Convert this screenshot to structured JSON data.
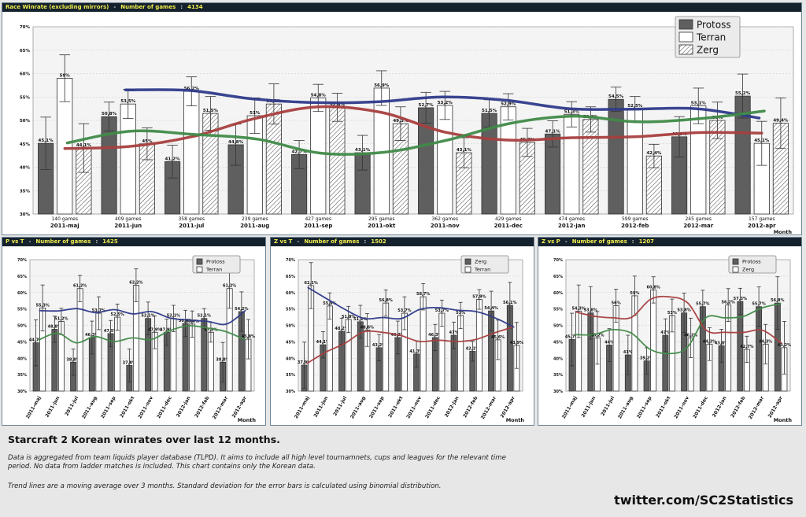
{
  "footer": {
    "title": "Starcraft 2 Korean winrates over last 12 months.",
    "description": "Data is aggregated from team liquids player database (TLPD). It aims to include all high level tournamnets, cups and leagues for the relevant time period. No data from ladder matches is included. This chart contains only the Korean data.",
    "trend_note": "Trend lines are a moving average over 3 months. Standard deviation for the error bars is calculated using binomial distribution.",
    "twitter": "twitter.com/SC2Statistics"
  },
  "colors": {
    "protoss": "#5f5f5f",
    "terran": "#ffffff",
    "zerg": "#ffffff",
    "blue": "#2e3a8a",
    "red": "#a83e3e",
    "green": "#3f8a48",
    "header_bg": "#15222d",
    "header_text": "#f0ec4e"
  },
  "chart_data": [
    {
      "id": "main",
      "type": "bar",
      "title": "Race Winrate (excluding mirrors)",
      "count_label": "Number of games",
      "count": "4134",
      "xlabel": "Month",
      "ylim": [
        30,
        70
      ],
      "yticks": [
        "30%",
        "35%",
        "40%",
        "45%",
        "50%",
        "55%",
        "60%",
        "65%",
        "70%"
      ],
      "categories": [
        "2011-maj",
        "2011-jun",
        "2011-jul",
        "2011-aug",
        "2011-sep",
        "2011-okt",
        "2011-nov",
        "2011-dec",
        "2012-jan",
        "2012-feb",
        "2012-mar",
        "2012-apr"
      ],
      "games": [
        "140 games",
        "409 games",
        "358 games",
        "239 games",
        "427 games",
        "295 games",
        "362 games",
        "429 games",
        "474 games",
        "599 games",
        "245 games",
        "157 games"
      ],
      "series": [
        {
          "name": "Protoss",
          "style": "protoss",
          "trend": "blue",
          "values": [
            45.1,
            50.8,
            41.2,
            44.8,
            42.7,
            43.1,
            52.7,
            51.5,
            47.1,
            54.5,
            46.5,
            55.2
          ],
          "labels": [
            "45,1%",
            "50,8%",
            "41,2%",
            "44,8%",
            "42,7%",
            "43,1%",
            "52,7%",
            "51,5%",
            "47,1%",
            "54,5%",
            "46,5%",
            "55,2%"
          ],
          "errors": [
            5.6,
            3.1,
            3.5,
            4.4,
            3.0,
            3.7,
            3.3,
            2.9,
            2.8,
            2.6,
            4.3,
            4.7
          ],
          "trend_values": [
            null,
            56.5,
            56.4,
            54.6,
            53.8,
            54.0,
            55.0,
            54.3,
            52.5,
            52.4,
            52.5,
            50.5
          ]
        },
        {
          "name": "Terran",
          "style": "terran",
          "trend": "red",
          "values": [
            59,
            53.5,
            56.2,
            51,
            54.8,
            56.9,
            53.2,
            52.9,
            51.3,
            52.5,
            53.1,
            45.1
          ],
          "labels": [
            "59%",
            "53,5%",
            "56,2%",
            "51%",
            "54,8%",
            "56,9%",
            "53,2%",
            "52,9%",
            "51,3%",
            "52,5%",
            "53,1%",
            "45,1%"
          ],
          "errors": [
            5.0,
            3.1,
            3.1,
            3.8,
            2.9,
            3.7,
            3.0,
            2.8,
            2.7,
            2.6,
            3.8,
            4.7
          ],
          "trend_values": [
            44.0,
            44.4,
            46.5,
            50.4,
            52.9,
            51.7,
            47.5,
            45.8,
            46.3,
            46.5,
            47.4,
            47.3
          ]
        },
        {
          "name": "Zerg",
          "style": "zerg",
          "trend": "green",
          "values": [
            44.1,
            45,
            51.5,
            53.5,
            52.8,
            49.3,
            43.1,
            45.3,
            50.2,
            42.4,
            50,
            49.4
          ],
          "labels": [
            "44,1%",
            "45%",
            "51,5%",
            "53,5%",
            "52,8%",
            "49,3%",
            "43,1%",
            "45,3%",
            "50,2%",
            "42,4%",
            "50%",
            "49,4%"
          ],
          "errors": [
            5.2,
            3.4,
            3.6,
            4.3,
            3.0,
            3.6,
            3.2,
            3.0,
            2.7,
            2.5,
            3.9,
            5.4
          ],
          "trend_values": [
            45.2,
            47.7,
            47.0,
            46.0,
            43.0,
            43.2,
            45.8,
            49.4,
            50.9,
            49.7,
            50.4,
            52.0
          ]
        }
      ]
    },
    {
      "id": "pvt",
      "type": "bar",
      "title": "P vs T",
      "count_label": "Number of games",
      "count": "1425",
      "xlabel": "Month",
      "ylim": [
        30,
        70
      ],
      "yticks": [
        "30%",
        "35%",
        "40%",
        "45%",
        "50%",
        "55%",
        "60%",
        "65%",
        "70%"
      ],
      "categories": [
        "2011-maj",
        "2011-jun",
        "2011-jul",
        "2011-aug",
        "2011-sep",
        "2011-okt",
        "2011-nov",
        "2011-dec",
        "2012-jan",
        "2012-feb",
        "2012-mar",
        "2012-apr"
      ],
      "series": [
        {
          "name": "Protoss",
          "style": "protoss",
          "trend": "green",
          "values": [
            44.7,
            48.8,
            38.8,
            46.3,
            47.5,
            37.8,
            52.1,
            47.9,
            50.6,
            52.1,
            38.8,
            54.2
          ],
          "labels": [
            "44,7%",
            "48,8%",
            "38,8%",
            "46,3%",
            "47,5%",
            "37,8%",
            "52,1%",
            "47,9%",
            "50,6%",
            "52,1%",
            "38,8%",
            "54,2%"
          ],
          "errors": [
            7,
            4,
            4,
            5,
            4,
            5,
            5,
            4,
            4,
            3,
            6,
            6
          ],
          "trend_values": [
            45.6,
            47.6,
            44.7,
            46.6,
            45.1,
            46.2,
            45.7,
            48.4,
            49.9,
            49.2,
            48.1,
            45.7
          ]
        },
        {
          "name": "Terran",
          "style": "terran",
          "trend": "blue",
          "values": [
            55.3,
            51.2,
            61.2,
            53.7,
            52.5,
            62.2,
            47.9,
            52.1,
            50.4,
            47.9,
            61.2,
            45.8
          ],
          "labels": [
            "55,3%",
            "51,2%",
            "61,2%",
            "53,7%",
            "52,5%",
            "62,2%",
            "47,9%",
            "52,1%",
            "50,4%",
            "47,9%",
            "61,2%",
            "45,8%"
          ],
          "errors": [
            7,
            4,
            4,
            5,
            4,
            5,
            5,
            4,
            4,
            3,
            6,
            6
          ],
          "trend_values": [
            54.5,
            54.4,
            55.1,
            53.9,
            54.8,
            53.5,
            54.2,
            52.2,
            51.6,
            51.2,
            50.4,
            54.5
          ]
        }
      ]
    },
    {
      "id": "zvt",
      "type": "bar",
      "title": "Z vs T",
      "count_label": "Number of games",
      "count": "1502",
      "xlabel": "Month",
      "ylim": [
        30,
        70
      ],
      "yticks": [
        "30%",
        "35%",
        "40%",
        "45%",
        "50%",
        "55%",
        "60%",
        "65%",
        "70%"
      ],
      "categories": [
        "2011-maj",
        "2011-jun",
        "2011-jul",
        "2011-aug",
        "2011-sep",
        "2011-okt",
        "2011-nov",
        "2011-dec",
        "2012-jan",
        "2012-feb",
        "2012-mar",
        "2012-apr"
      ],
      "series": [
        {
          "name": "Zerg",
          "style": "protoss",
          "trend": "red",
          "values": [
            37.9,
            44.1,
            48.2,
            51.1,
            43.2,
            46.3,
            41.3,
            46.3,
            47,
            42.1,
            54.4,
            56.1
          ],
          "labels": [
            "37,9%",
            "44,1%",
            "48,2%",
            "51,1%",
            "43,2%",
            "46,3%",
            "41,3%",
            "46,3%",
            "47%",
            "42,1%",
            "54,4%",
            "56,1%"
          ],
          "errors": [
            7,
            4,
            4,
            5,
            4,
            5,
            4,
            4,
            4,
            3,
            6,
            7
          ],
          "trend_values": [
            38.5,
            41.9,
            44.5,
            48.0,
            47.9,
            46.9,
            45.1,
            45.5,
            45.1,
            45.7,
            47.7,
            49.5
          ]
        },
        {
          "name": "Terran",
          "style": "terran",
          "trend": "blue",
          "values": [
            62.1,
            55.9,
            51.8,
            48.6,
            56.8,
            53.7,
            58.7,
            53.7,
            53,
            57.9,
            45.6,
            43.9
          ],
          "labels": [
            "62,1%",
            "55,9%",
            "51,8%",
            "48,6%",
            "56,8%",
            "53,7%",
            "58,7%",
            "53,7%",
            "53%",
            "57,9%",
            "45,6%",
            "43,9%"
          ],
          "errors": [
            7,
            4,
            4,
            5,
            4,
            5,
            4,
            4,
            4,
            3,
            6,
            7
          ],
          "trend_values": [
            61.5,
            58.1,
            54.8,
            52.1,
            52.4,
            52.1,
            54.9,
            55.4,
            54.6,
            54.2,
            52.3,
            49.5
          ]
        }
      ]
    },
    {
      "id": "zvp",
      "type": "bar",
      "title": "Z vs P",
      "count_label": "Number of games",
      "count": "1207",
      "xlabel": "Month",
      "ylim": [
        30,
        70
      ],
      "yticks": [
        "30%",
        "35%",
        "40%",
        "45%",
        "50%",
        "55%",
        "60%",
        "65%",
        "70%"
      ],
      "categories": [
        "2011-maj",
        "2011-jun",
        "2011-jul",
        "2011-aug",
        "2011-sep",
        "2011-okt",
        "2011-nov",
        "2011-dec",
        "2012-jan",
        "2012-feb",
        "2012-mar",
        "2012-apr"
      ],
      "series": [
        {
          "name": "Protoss",
          "style": "protoss",
          "trend": "green",
          "values": [
            45.7,
            53.8,
            44,
            41,
            39.2,
            47,
            53.8,
            55.7,
            43.8,
            57.3,
            55.7,
            56.8
          ],
          "labels": [
            "45,7%",
            "53,8%",
            "44%",
            "41%",
            "39,2%",
            "47%",
            "53,8%",
            "55,7%",
            "43,8%",
            "57,3%",
            "55,7%",
            "56,8%"
          ],
          "errors": [
            8,
            8,
            5,
            6,
            4,
            5,
            6,
            5,
            5,
            4,
            6,
            8
          ],
          "trend_values": [
            47.2,
            47.2,
            48.7,
            47.7,
            42.8,
            41.4,
            43.2,
            52.3,
            52.3,
            52.7,
            55.3,
            56.6
          ]
        },
        {
          "name": "Zerg",
          "style": "terran",
          "trend": "red",
          "values": [
            54.3,
            46.2,
            56,
            59,
            60.8,
            53,
            46.2,
            44.3,
            56.2,
            42.7,
            44.3,
            43.2
          ],
          "labels": [
            "54,3%",
            "46,2%",
            "56%",
            "59%",
            "60,8%",
            "53%",
            "46,2%",
            "44,3%",
            "56,2%",
            "42,7%",
            "44,3%",
            "43,2%"
          ],
          "errors": [
            8,
            8,
            5,
            6,
            4,
            5,
            6,
            5,
            5,
            4,
            6,
            8
          ],
          "trend_values": [
            54.1,
            52.8,
            52.3,
            52.5,
            57.9,
            58.7,
            56.8,
            48.5,
            47.9,
            47.9,
            48.5,
            44.6
          ]
        }
      ]
    }
  ]
}
